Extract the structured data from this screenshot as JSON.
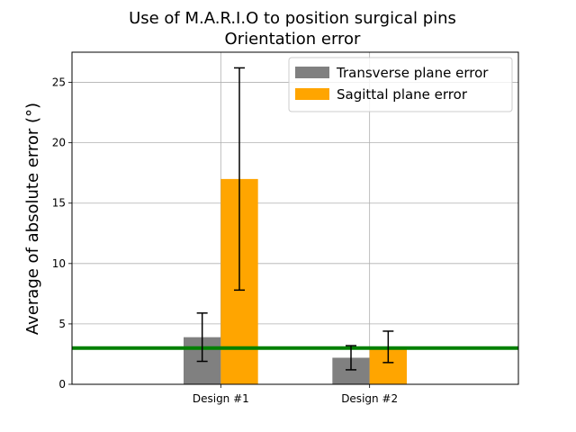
{
  "chart_data": {
    "type": "bar",
    "title_line1": "Use of M.A.R.I.O to position surgical pins",
    "title_line2": "Orientation error",
    "xlabel": "",
    "ylabel": "Average of absolute error (°)",
    "categories": [
      "Design #1",
      "Design #2"
    ],
    "series": [
      {
        "name": "Transverse plane error",
        "color": "#808080",
        "values": [
          3.9,
          2.2
        ],
        "errors": [
          2.0,
          1.0
        ]
      },
      {
        "name": "Sagittal plane error",
        "color": "#ffa500",
        "values": [
          17.0,
          3.1
        ],
        "errors": [
          9.2,
          1.3
        ]
      }
    ],
    "reference_line": {
      "value": 3.0,
      "color": "#008000"
    },
    "yticks": [
      0,
      5,
      10,
      15,
      20,
      25
    ],
    "ylim": [
      0,
      27.5
    ],
    "grid": true,
    "legend_position": "top-right"
  }
}
